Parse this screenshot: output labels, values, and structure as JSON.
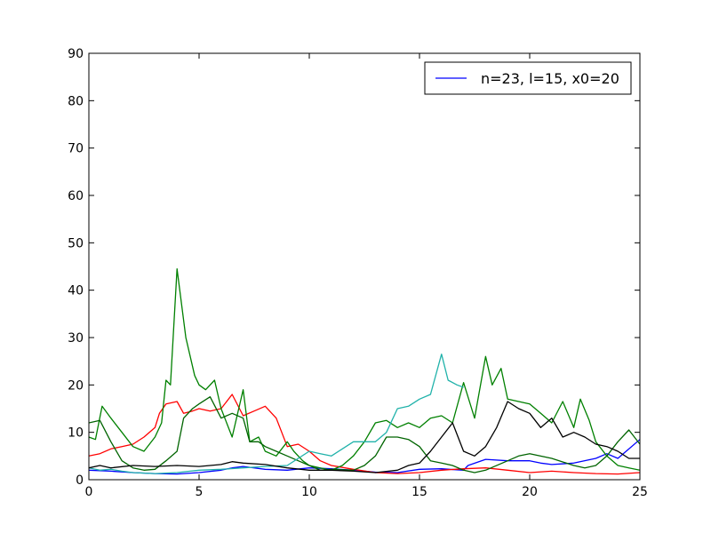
{
  "chart_data": {
    "type": "line",
    "xlim": [
      0,
      25
    ],
    "ylim": [
      0,
      90
    ],
    "x_ticks": [
      0,
      5,
      10,
      15,
      20,
      25
    ],
    "y_ticks": [
      0,
      10,
      20,
      30,
      40,
      50,
      60,
      70,
      80,
      90
    ],
    "grid": false,
    "legend": {
      "position": "top-right",
      "entries": [
        {
          "label": "n=23, l=15, x0=20",
          "color": "#0000ff"
        }
      ]
    },
    "series": [
      {
        "color": "#0000ff",
        "points": [
          [
            0,
            2
          ],
          [
            1,
            1.8
          ],
          [
            2,
            1.5
          ],
          [
            3,
            1.3
          ],
          [
            4,
            1.2
          ],
          [
            5,
            1.5
          ],
          [
            6,
            2
          ],
          [
            6.5,
            2.5
          ],
          [
            7,
            2.8
          ],
          [
            8,
            2.2
          ],
          [
            9,
            2
          ],
          [
            10,
            2.5
          ],
          [
            11,
            2.3
          ],
          [
            12,
            2
          ],
          [
            13,
            1.6
          ],
          [
            14,
            1.5
          ],
          [
            15,
            2.2
          ],
          [
            16,
            2.3
          ],
          [
            17,
            2
          ],
          [
            17.2,
            3
          ],
          [
            18,
            4.3
          ],
          [
            19,
            4
          ],
          [
            20,
            4
          ],
          [
            20.5,
            3.5
          ],
          [
            21,
            3.2
          ],
          [
            22,
            3.5
          ],
          [
            23,
            4.5
          ],
          [
            23.5,
            5.5
          ],
          [
            24,
            4.5
          ],
          [
            25,
            8.5
          ]
        ]
      },
      {
        "color": "#ff0000",
        "points": [
          [
            0,
            5
          ],
          [
            0.5,
            5.5
          ],
          [
            1,
            6.5
          ],
          [
            1.5,
            7
          ],
          [
            2,
            7.5
          ],
          [
            2.5,
            9
          ],
          [
            3,
            11
          ],
          [
            3.2,
            14
          ],
          [
            3.5,
            16
          ],
          [
            4,
            16.5
          ],
          [
            4.3,
            14
          ],
          [
            4.7,
            14.5
          ],
          [
            5,
            15
          ],
          [
            5.5,
            14.5
          ],
          [
            6,
            15
          ],
          [
            6.5,
            18
          ],
          [
            7,
            13.5
          ],
          [
            7.5,
            14.5
          ],
          [
            8,
            15.5
          ],
          [
            8.5,
            13
          ],
          [
            9,
            7
          ],
          [
            9.5,
            7.5
          ],
          [
            10,
            6
          ],
          [
            10.5,
            4
          ],
          [
            11,
            3
          ],
          [
            12,
            2.2
          ],
          [
            13,
            1.5
          ],
          [
            14,
            1.3
          ],
          [
            15,
            1.5
          ],
          [
            16,
            2
          ],
          [
            17,
            2.3
          ],
          [
            18,
            2.5
          ],
          [
            19,
            2
          ],
          [
            20,
            1.5
          ],
          [
            21,
            1.8
          ],
          [
            22,
            1.5
          ],
          [
            23,
            1.3
          ],
          [
            24,
            1.2
          ],
          [
            25,
            1.5
          ]
        ]
      },
      {
        "color": "#008000",
        "points": [
          [
            0,
            9
          ],
          [
            0.3,
            8.5
          ],
          [
            0.6,
            15.5
          ],
          [
            1,
            13
          ],
          [
            1.5,
            10
          ],
          [
            2,
            7
          ],
          [
            2.5,
            6
          ],
          [
            3,
            9
          ],
          [
            3.3,
            12
          ],
          [
            3.5,
            21
          ],
          [
            3.7,
            20
          ],
          [
            4,
            44.5
          ],
          [
            4.4,
            30
          ],
          [
            4.8,
            22
          ],
          [
            5,
            20
          ],
          [
            5.3,
            19
          ],
          [
            5.7,
            21
          ],
          [
            6,
            15
          ],
          [
            6.5,
            9
          ],
          [
            7,
            19
          ],
          [
            7.3,
            8
          ],
          [
            7.7,
            9
          ],
          [
            8,
            6
          ],
          [
            8.5,
            5
          ],
          [
            9,
            8
          ],
          [
            9.3,
            6
          ],
          [
            9.7,
            4
          ],
          [
            10,
            3
          ],
          [
            10.5,
            2.5
          ],
          [
            11,
            2
          ],
          [
            11.5,
            3
          ],
          [
            12,
            5
          ],
          [
            12.5,
            8
          ],
          [
            13,
            12
          ],
          [
            13.5,
            12.5
          ],
          [
            14,
            11
          ],
          [
            14.5,
            12
          ],
          [
            15,
            11
          ],
          [
            15.5,
            13
          ],
          [
            16,
            13.5
          ],
          [
            16.5,
            12
          ],
          [
            17,
            20.5
          ],
          [
            17.5,
            13
          ],
          [
            18,
            26
          ],
          [
            18.3,
            20
          ],
          [
            18.7,
            23.5
          ],
          [
            19,
            17
          ],
          [
            19.5,
            16.5
          ],
          [
            20,
            16
          ],
          [
            20.5,
            14
          ],
          [
            21,
            12
          ],
          [
            21.5,
            16.5
          ],
          [
            22,
            11
          ],
          [
            22.3,
            17
          ],
          [
            22.7,
            12.5
          ],
          [
            23,
            8
          ],
          [
            23.5,
            5
          ],
          [
            24,
            3
          ],
          [
            24.5,
            2.5
          ],
          [
            25,
            2
          ]
        ]
      },
      {
        "color": "#006400",
        "points": [
          [
            0,
            12
          ],
          [
            0.5,
            12.5
          ],
          [
            1,
            8
          ],
          [
            1.5,
            4
          ],
          [
            2,
            2.5
          ],
          [
            2.5,
            2
          ],
          [
            3,
            2.2
          ],
          [
            3.5,
            4
          ],
          [
            4,
            6
          ],
          [
            4.3,
            13
          ],
          [
            4.7,
            15
          ],
          [
            5,
            16
          ],
          [
            5.5,
            17.5
          ],
          [
            6,
            13
          ],
          [
            6.5,
            14
          ],
          [
            7,
            13
          ],
          [
            7.3,
            8
          ],
          [
            7.7,
            8
          ],
          [
            8,
            7
          ],
          [
            8.5,
            6
          ],
          [
            9,
            5
          ],
          [
            9.5,
            4
          ],
          [
            10,
            3
          ],
          [
            10.5,
            2
          ],
          [
            11,
            2.2
          ],
          [
            12,
            2
          ],
          [
            12.5,
            3
          ],
          [
            13,
            5
          ],
          [
            13.5,
            9
          ],
          [
            14,
            9
          ],
          [
            14.5,
            8.5
          ],
          [
            15,
            7
          ],
          [
            15.5,
            4
          ],
          [
            16,
            3.5
          ],
          [
            16.5,
            3
          ],
          [
            17,
            2
          ],
          [
            17.5,
            1.5
          ],
          [
            18,
            2
          ],
          [
            19,
            4
          ],
          [
            19.5,
            5
          ],
          [
            20,
            5.5
          ],
          [
            21,
            4.5
          ],
          [
            22,
            3
          ],
          [
            22.5,
            2.5
          ],
          [
            23,
            3
          ],
          [
            23.5,
            5
          ],
          [
            24,
            8
          ],
          [
            24.5,
            10.5
          ],
          [
            25,
            7.5
          ]
        ]
      },
      {
        "color": "#20b2aa",
        "points": [
          [
            0,
            2.5
          ],
          [
            0.5,
            2
          ],
          [
            1,
            2.2
          ],
          [
            1.5,
            1.8
          ],
          [
            2,
            1.5
          ],
          [
            3,
            1.3
          ],
          [
            4,
            1.5
          ],
          [
            5,
            2
          ],
          [
            6,
            2.2
          ],
          [
            7,
            2.5
          ],
          [
            8,
            2.8
          ],
          [
            9,
            3
          ],
          [
            10,
            6
          ],
          [
            10.5,
            5.5
          ],
          [
            11,
            5
          ],
          [
            11.5,
            6.5
          ],
          [
            12,
            8
          ],
          [
            12.5,
            8
          ],
          [
            13,
            8
          ],
          [
            13.5,
            10
          ],
          [
            14,
            15
          ],
          [
            14.5,
            15.5
          ],
          [
            15,
            17
          ],
          [
            15.5,
            18
          ],
          [
            16,
            26.5
          ],
          [
            16.3,
            21
          ],
          [
            16.7,
            20
          ],
          [
            17,
            19.5
          ]
        ]
      },
      {
        "color": "#000000",
        "points": [
          [
            0,
            2.5
          ],
          [
            0.5,
            3
          ],
          [
            1,
            2.5
          ],
          [
            2,
            3
          ],
          [
            3,
            2.8
          ],
          [
            4,
            3
          ],
          [
            5,
            2.8
          ],
          [
            6,
            3.2
          ],
          [
            6.5,
            3.8
          ],
          [
            7,
            3.5
          ],
          [
            8,
            3.2
          ],
          [
            9,
            2.5
          ],
          [
            10,
            2
          ],
          [
            11,
            2
          ],
          [
            12,
            1.8
          ],
          [
            13,
            1.5
          ],
          [
            14,
            2
          ],
          [
            14.5,
            3
          ],
          [
            15,
            3.5
          ],
          [
            15.5,
            6
          ],
          [
            16,
            9
          ],
          [
            16.5,
            12
          ],
          [
            17,
            6
          ],
          [
            17.5,
            5
          ],
          [
            18,
            7
          ],
          [
            18.5,
            11
          ],
          [
            19,
            16.5
          ],
          [
            19.5,
            15
          ],
          [
            20,
            14
          ],
          [
            20.5,
            11
          ],
          [
            21,
            13
          ],
          [
            21.5,
            9
          ],
          [
            22,
            10
          ],
          [
            22.5,
            9
          ],
          [
            23,
            7.5
          ],
          [
            23.5,
            7
          ],
          [
            24,
            6
          ],
          [
            24.5,
            4.5
          ],
          [
            25,
            4.5
          ]
        ]
      }
    ]
  }
}
